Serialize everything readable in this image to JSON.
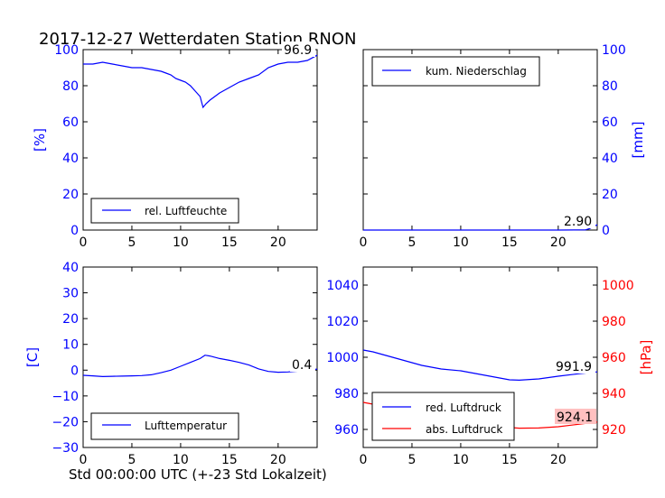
{
  "title": "2017-12-27 Wetterdaten Station RNON",
  "xlabel": "Std 00:00:00 UTC (+-23 Std Lokalzeit)",
  "colors": {
    "blue": "#0000ff",
    "red": "#ff0000",
    "annot_red_bg": "#ffc0c0"
  },
  "chart_data": [
    {
      "type": "line",
      "panel": "top-left",
      "ylabel": "[%]",
      "xlim": [
        0,
        24
      ],
      "ylim": [
        0,
        100
      ],
      "xticks": [
        0,
        5,
        10,
        15,
        20
      ],
      "yticks": [
        0,
        20,
        40,
        60,
        80,
        100
      ],
      "legend": {
        "position": "lower-right",
        "entries": [
          "rel. Luftfeuchte"
        ]
      },
      "annotation": "96.9",
      "series": [
        {
          "name": "rel. Luftfeuchte",
          "color": "#0000ff",
          "x": [
            0,
            1,
            2,
            3,
            4,
            5,
            6,
            7,
            8,
            8.5,
            9,
            9.5,
            10,
            10.5,
            11,
            11.5,
            12,
            12.3,
            12.6,
            13,
            13.5,
            14,
            15,
            16,
            17,
            18,
            19,
            20,
            21,
            22,
            23,
            24
          ],
          "y": [
            92,
            92,
            93,
            92,
            91,
            90,
            90,
            89,
            88,
            87,
            86,
            84,
            83,
            82,
            80,
            77,
            74,
            68,
            70,
            72,
            74,
            76,
            79,
            82,
            84,
            86,
            90,
            92,
            93,
            93,
            94,
            96.9
          ]
        }
      ]
    },
    {
      "type": "line",
      "panel": "top-right",
      "ylabel": "[mm]",
      "xlim": [
        0,
        24
      ],
      "ylim": [
        0,
        100
      ],
      "xticks": [
        0,
        5,
        10,
        15,
        20
      ],
      "yticks": [
        0,
        20,
        40,
        60,
        80,
        100
      ],
      "legend": {
        "position": "upper-right",
        "entries": [
          "kum. Niederschlag"
        ]
      },
      "annotation": "2.90",
      "series": [
        {
          "name": "kum. Niederschlag",
          "color": "#0000ff",
          "x": [
            0,
            5,
            10,
            15,
            20,
            22.8,
            23.2,
            23.6,
            24
          ],
          "y": [
            0,
            0,
            0,
            0,
            0,
            0.1,
            0.8,
            1.9,
            2.9
          ]
        }
      ]
    },
    {
      "type": "line",
      "panel": "bottom-left",
      "ylabel": "[C]",
      "xlim": [
        0,
        24
      ],
      "ylim": [
        -30,
        40
      ],
      "xticks": [
        0,
        5,
        10,
        15,
        20
      ],
      "yticks": [
        -30,
        -20,
        -10,
        0,
        10,
        20,
        30,
        40
      ],
      "legend": {
        "position": "lower-right",
        "entries": [
          "Lufttemperatur"
        ]
      },
      "annotation": "0.4",
      "series": [
        {
          "name": "Lufttemperatur",
          "color": "#0000ff",
          "x": [
            0,
            1,
            2,
            3,
            4,
            5,
            6,
            7,
            8,
            9,
            10,
            11,
            12,
            12.5,
            13,
            14,
            15,
            16,
            17,
            18,
            19,
            20,
            21,
            22,
            23,
            24
          ],
          "y": [
            -2,
            -2.2,
            -2.5,
            -2.4,
            -2.3,
            -2.2,
            -2.1,
            -1.8,
            -1,
            0,
            1.5,
            3,
            4.5,
            5.8,
            5.5,
            4.5,
            3.8,
            3,
            2,
            0.5,
            -0.5,
            -0.8,
            -0.7,
            -0.4,
            0,
            0.4
          ]
        }
      ]
    },
    {
      "type": "line",
      "panel": "bottom-right",
      "ylabel_right": "[hPa]",
      "xlim": [
        0,
        24
      ],
      "ylim_left": [
        950,
        1050
      ],
      "ylim_right": [
        910,
        1010
      ],
      "xticks": [
        0,
        5,
        10,
        15,
        20
      ],
      "yticks_left": [
        960,
        980,
        1000,
        1020,
        1040
      ],
      "yticks_right": [
        920,
        940,
        960,
        980,
        1000
      ],
      "legend": {
        "position": "lower-left",
        "entries": [
          "red. Luftdruck",
          "abs. Luftdruck"
        ]
      },
      "annotations": [
        "991.9",
        "924.1"
      ],
      "series": [
        {
          "name": "red. Luftdruck",
          "color": "#0000ff",
          "axis": "left",
          "x": [
            0,
            1,
            2,
            4,
            6,
            8,
            10,
            12,
            14,
            15,
            16,
            18,
            20,
            22,
            24
          ],
          "y": [
            1004,
            1003,
            1001.5,
            998.5,
            995.5,
            993.5,
            992.5,
            990.5,
            988.5,
            987.5,
            987.3,
            988,
            989.5,
            990.8,
            991.9
          ]
        },
        {
          "name": "abs. Luftdruck",
          "color": "#ff0000",
          "axis": "right",
          "x": [
            0,
            1,
            2,
            4,
            6,
            8,
            10,
            12,
            14,
            16,
            18,
            20,
            22,
            24
          ],
          "y": [
            935,
            934,
            932,
            929,
            926.5,
            925,
            924.5,
            923.5,
            921.5,
            920.7,
            920.8,
            921.5,
            922.8,
            924.1
          ]
        }
      ]
    }
  ]
}
